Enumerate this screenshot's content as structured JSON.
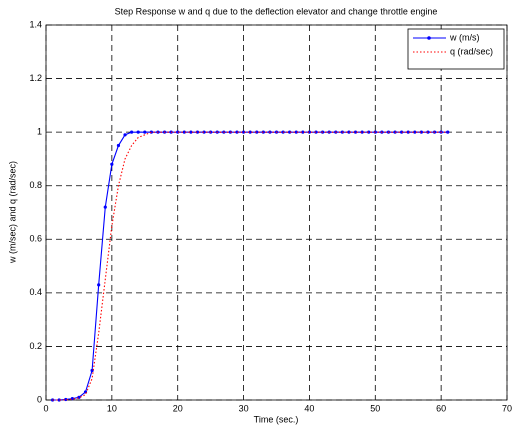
{
  "chart_data": {
    "type": "line",
    "title": "Step Response w and q due to the deflection elevator and change throttle engine",
    "x_label": "Time (sec.)",
    "y_label": "w (m/sec) and q (rad/sec)",
    "x": [
      1,
      2,
      3,
      4,
      5,
      6,
      7,
      8,
      9,
      10,
      11,
      12,
      13,
      14,
      15,
      16,
      17,
      18,
      19,
      20,
      21,
      22,
      23,
      24,
      25,
      26,
      27,
      28,
      29,
      30,
      31,
      32,
      33,
      34,
      35,
      36,
      37,
      38,
      39,
      40,
      41,
      42,
      43,
      44,
      45,
      46,
      47,
      48,
      49,
      50,
      51,
      52,
      53,
      54,
      55,
      56,
      57,
      58,
      59,
      60,
      61
    ],
    "series": [
      {
        "name": "w (m/s)",
        "color": "#0000ff",
        "linestyle": "solid",
        "marker": "o",
        "values": [
          0,
          0,
          0.002,
          0.005,
          0.01,
          0.03,
          0.11,
          0.43,
          0.72,
          0.88,
          0.95,
          0.99,
          1,
          1,
          1,
          1,
          1,
          1,
          1,
          1,
          1,
          1,
          1,
          1,
          1,
          1,
          1,
          1,
          1,
          1,
          1,
          1,
          1,
          1,
          1,
          1,
          1,
          1,
          1,
          1,
          1,
          1,
          1,
          1,
          1,
          1,
          1,
          1,
          1,
          1,
          1,
          1,
          1,
          1,
          1,
          1,
          1,
          1,
          1,
          1,
          1
        ]
      },
      {
        "name": "q (rad/sec)",
        "color": "#ff0000",
        "linestyle": "dotted",
        "values": [
          0,
          0,
          0.001,
          0.003,
          0.008,
          0.02,
          0.08,
          0.25,
          0.45,
          0.65,
          0.8,
          0.9,
          0.95,
          0.98,
          0.99,
          1,
          1,
          1,
          1,
          1,
          1,
          1,
          1,
          1,
          1,
          1,
          1,
          1,
          1,
          1,
          1,
          1,
          1,
          1,
          1,
          1,
          1,
          1,
          1,
          1,
          1,
          1,
          1,
          1,
          1,
          1,
          1,
          1,
          1,
          1,
          1,
          1,
          1,
          1,
          1,
          1,
          1,
          1,
          1,
          1,
          1
        ]
      }
    ],
    "xlim": [
      0,
      70
    ],
    "xticks": [
      0,
      10,
      20,
      30,
      40,
      50,
      60,
      70
    ],
    "ylim": [
      0,
      1.4
    ],
    "yticks": [
      0,
      0.2,
      0.4,
      0.6,
      0.8,
      1,
      1.2,
      1.4
    ],
    "grid": true,
    "legend": "top-right"
  }
}
